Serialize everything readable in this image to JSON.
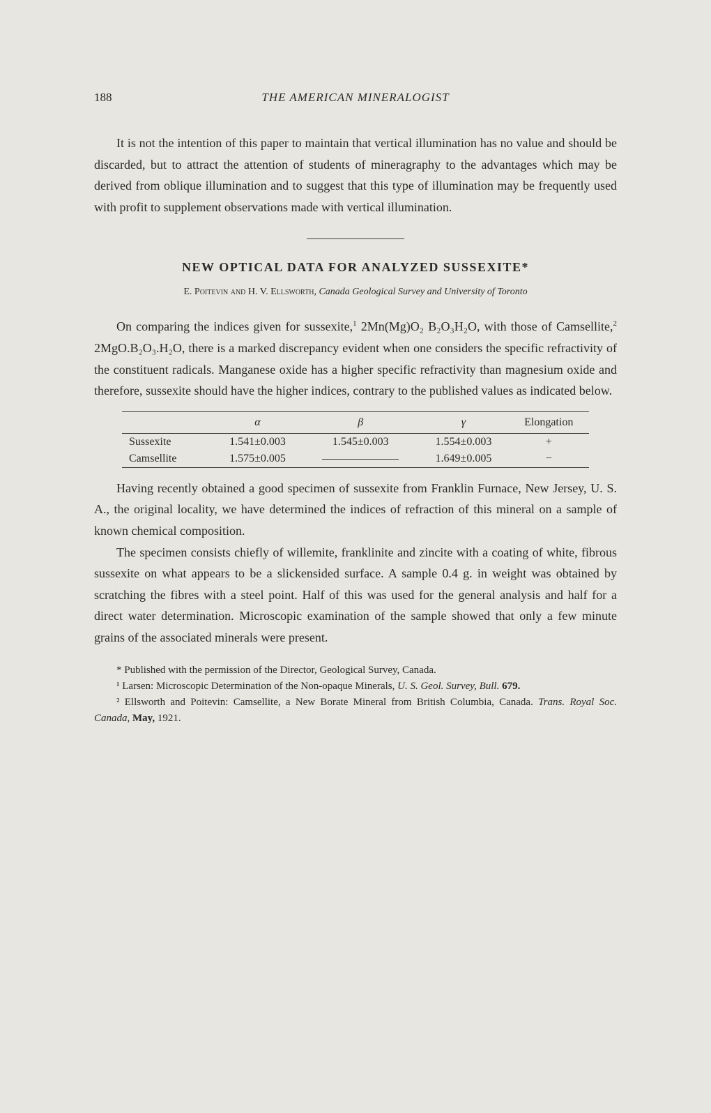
{
  "page_number": "188",
  "running_title": "THE AMERICAN MINERALOGIST",
  "intro_para": "It is not the intention of this paper to maintain that vertical illumination has no value and should be discarded, but to attract the attention of students of mineragraphy to the advantages which may be derived from oblique illumination and to suggest that this type of illumination may be frequently used with profit to supplement observations made with vertical illumination.",
  "article_title": "NEW OPTICAL DATA FOR ANALYZED SUSSEXITE*",
  "authors_names": "E. Poitevin and H. V. Ellsworth, ",
  "authors_affil": "Canada Geological Survey and University of Toronto",
  "para1_a": "On comparing the indices given for sussexite,",
  "para1_b": " 2Mn(Mg)O₂ B₂O₃H₂O, with those of Camsellite,",
  "para1_c": " 2MgO.B₂O₃.H₂O, there is a marked discrepancy evident when one considers the specific refractivity of the constituent radicals. Manganese oxide has a higher specific refractivity than magnesium oxide and therefore, sussexite should have the higher indices, contrary to the published values as indicated below.",
  "table": {
    "columns": [
      "",
      "α",
      "β",
      "γ",
      "Elongation"
    ],
    "rows": [
      {
        "name": "Sussexite",
        "alpha": "1.541±0.003",
        "beta": "1.545±0.003",
        "gamma": "1.554±0.003",
        "elongation": "+"
      },
      {
        "name": "Camsellite",
        "alpha": "1.575±0.005",
        "beta": "—",
        "gamma": "1.649±0.005",
        "elongation": "−"
      }
    ]
  },
  "para2": "Having recently obtained a good specimen of sussexite from Franklin Furnace, New Jersey, U. S. A., the original locality, we have determined the indices of refraction of this mineral on a sample of known chemical composition.",
  "para3": "The specimen consists chiefly of willemite, franklinite and zincite with a coating of white, fibrous sussexite on what appears to be a slickensided surface.   A sample 0.4 g. in weight was obtained by scratching the fibres with a steel point.  Half of this was used for the general analysis and half for a direct water determination.  Microscopic examination of the sample showed that only a few minute grains of the associated minerals were present.",
  "footnote_star": "* Published with the permission of the Director, Geological Survey, Canada.",
  "footnote_1_a": "¹ Larsen: Microscopic Determination of the Non-opaque Minerals, ",
  "footnote_1_b": "U. S. Geol. Survey, Bull.",
  "footnote_1_c": " 679.",
  "footnote_2_a": "² Ellsworth and Poitevin: Camsellite, a New Borate Mineral from British Columbia, Canada.  ",
  "footnote_2_b": "Trans. Royal Soc. Canada,",
  "footnote_2_c": " May, 1921.",
  "sup1": "1",
  "sup2": "2",
  "bold679": "679."
}
